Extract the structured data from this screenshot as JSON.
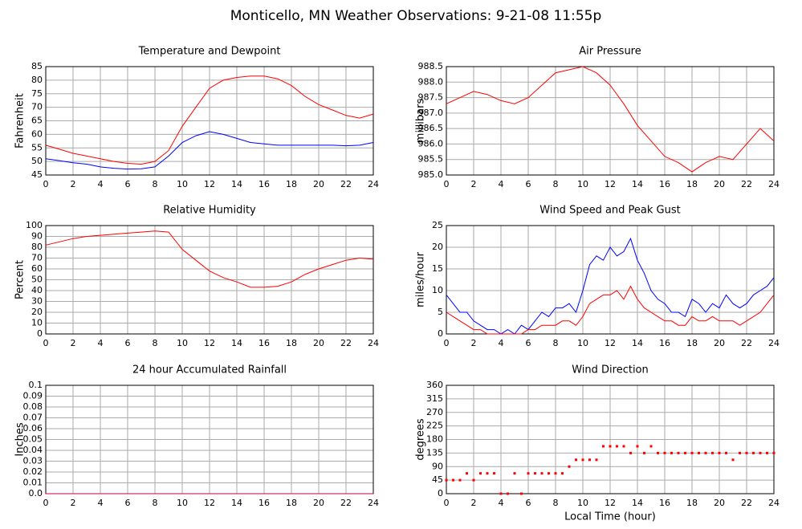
{
  "title": "Monticello, MN Weather Observations: 9-21-08 11:55p",
  "chart_data": [
    {
      "type": "line",
      "title": "Temperature and Dewpoint",
      "ylabel": "Fahrenheit",
      "grid": true,
      "x": [
        0,
        1,
        2,
        3,
        4,
        5,
        6,
        7,
        8,
        9,
        10,
        11,
        12,
        13,
        14,
        15,
        16,
        17,
        18,
        19,
        20,
        21,
        22,
        23,
        24
      ],
      "series": [
        {
          "color": "#ff0000",
          "values": [
            56,
            54.5,
            53,
            52,
            51,
            50,
            49.3,
            49,
            50,
            54,
            63,
            70,
            77,
            80,
            81,
            81.5,
            81.5,
            80.5,
            78,
            74,
            71,
            69,
            67,
            66,
            67.5
          ]
        },
        {
          "color": "#0000ff",
          "values": [
            51,
            50.3,
            49.5,
            49,
            48,
            47.5,
            47.2,
            47.3,
            48,
            52,
            57,
            59.5,
            61,
            60,
            58.5,
            57,
            56.5,
            56,
            56,
            56,
            56,
            56,
            55.8,
            56,
            57
          ]
        }
      ],
      "xlim": [
        0,
        24
      ],
      "xticks": [
        0,
        2,
        4,
        6,
        8,
        10,
        12,
        14,
        16,
        18,
        20,
        22,
        24
      ],
      "ylim": [
        45,
        85
      ],
      "yticks": [
        45,
        50,
        55,
        60,
        65,
        70,
        75,
        80,
        85
      ]
    },
    {
      "type": "line",
      "title": "Air Pressure",
      "ylabel": "millibars",
      "grid": true,
      "x": [
        0,
        1,
        2,
        3,
        4,
        5,
        6,
        7,
        8,
        9,
        10,
        11,
        12,
        13,
        14,
        15,
        16,
        17,
        18,
        19,
        20,
        21,
        22,
        23,
        24
      ],
      "series": [
        {
          "color": "#ff0000",
          "values": [
            987.3,
            987.5,
            987.7,
            987.6,
            987.4,
            987.3,
            987.5,
            987.9,
            988.3,
            988.4,
            988.5,
            988.3,
            987.9,
            987.3,
            986.6,
            986.1,
            985.6,
            985.4,
            985.1,
            985.4,
            985.6,
            985.5,
            986.0,
            986.5,
            986.1
          ]
        }
      ],
      "xlim": [
        0,
        24
      ],
      "xticks": [
        0,
        2,
        4,
        6,
        8,
        10,
        12,
        14,
        16,
        18,
        20,
        22,
        24
      ],
      "ylim": [
        985,
        988.5
      ],
      "yticks": [
        {
          "value": 985,
          "label": "985.0"
        },
        985.5,
        {
          "value": 986,
          "label": "986.0"
        },
        986.5,
        {
          "value": 987,
          "label": "987.0"
        },
        987.5,
        {
          "value": 988,
          "label": "988.0"
        },
        988.5
      ]
    },
    {
      "type": "line",
      "title": "Relative Humidity",
      "ylabel": "Percent",
      "grid": true,
      "x": [
        0,
        1,
        2,
        3,
        4,
        5,
        6,
        7,
        8,
        9,
        10,
        11,
        12,
        13,
        14,
        15,
        16,
        17,
        18,
        19,
        20,
        21,
        22,
        23,
        24
      ],
      "series": [
        {
          "color": "#ff0000",
          "values": [
            82,
            85,
            88,
            90,
            91,
            92,
            93,
            94,
            95,
            94,
            78,
            68,
            58,
            52,
            48,
            43,
            43,
            44,
            48,
            55,
            60,
            64,
            68,
            70,
            69
          ]
        }
      ],
      "xlim": [
        0,
        24
      ],
      "xticks": [
        0,
        2,
        4,
        6,
        8,
        10,
        12,
        14,
        16,
        18,
        20,
        22,
        24
      ],
      "ylim": [
        0,
        100
      ],
      "yticks": [
        0,
        10,
        20,
        30,
        40,
        50,
        60,
        70,
        80,
        90,
        100
      ]
    },
    {
      "type": "line",
      "title": "Wind Speed and Peak Gust",
      "ylabel": "miles/hour",
      "grid": true,
      "x": [
        0,
        0.5,
        1,
        1.5,
        2,
        2.5,
        3,
        3.5,
        4,
        4.5,
        5,
        5.5,
        6,
        6.5,
        7,
        7.5,
        8,
        8.5,
        9,
        9.5,
        10,
        10.5,
        11,
        11.5,
        12,
        12.5,
        13,
        13.5,
        14,
        14.5,
        15,
        15.5,
        16,
        16.5,
        17,
        17.5,
        18,
        18.5,
        19,
        19.5,
        20,
        20.5,
        21,
        21.5,
        22,
        22.5,
        23,
        23.5,
        24
      ],
      "series": [
        {
          "color": "#0000ff",
          "values": [
            9,
            7,
            5,
            5,
            3,
            2,
            1,
            1,
            0,
            1,
            0,
            2,
            1,
            3,
            5,
            4,
            6,
            6,
            7,
            5,
            10,
            16,
            18,
            17,
            20,
            18,
            19,
            22,
            17,
            14,
            10,
            8,
            7,
            5,
            5,
            4,
            8,
            7,
            5,
            7,
            6,
            9,
            7,
            6,
            7,
            9,
            10,
            11,
            13
          ]
        },
        {
          "color": "#ff0000",
          "values": [
            5,
            4,
            3,
            2,
            1,
            1,
            0,
            0,
            0,
            0,
            0,
            0,
            1,
            1,
            2,
            2,
            2,
            3,
            3,
            2,
            4,
            7,
            8,
            9,
            9,
            10,
            8,
            11,
            8,
            6,
            5,
            4,
            3,
            3,
            2,
            2,
            4,
            3,
            3,
            4,
            3,
            3,
            3,
            2,
            3,
            4,
            5,
            7,
            9
          ]
        }
      ],
      "xlim": [
        0,
        24
      ],
      "xticks": [
        0,
        2,
        4,
        6,
        8,
        10,
        12,
        14,
        16,
        18,
        20,
        22,
        24
      ],
      "ylim": [
        0,
        25
      ],
      "yticks": [
        0,
        5,
        10,
        15,
        20,
        25
      ]
    },
    {
      "type": "line",
      "title": "24 hour Accumulated Rainfall",
      "ylabel": "Inches",
      "grid": true,
      "x": [
        0,
        24
      ],
      "series": [
        {
          "color": "#cc0044",
          "values": [
            0,
            0
          ]
        }
      ],
      "xlim": [
        0,
        24
      ],
      "xticks": [
        0,
        2,
        4,
        6,
        8,
        10,
        12,
        14,
        16,
        18,
        20,
        22,
        24
      ],
      "ylim": [
        0,
        0.1
      ],
      "yticks": [
        {
          "value": 0,
          "label": "0.0"
        },
        0.01,
        0.02,
        0.03,
        0.04,
        0.05,
        0.06,
        0.07,
        0.08,
        0.09,
        0.1
      ]
    },
    {
      "type": "scatter",
      "title": "Wind Direction",
      "ylabel": "degrees",
      "xlabel": "Local Time (hour)",
      "grid": true,
      "x": [
        0,
        0.5,
        1,
        1.5,
        2,
        2.5,
        3,
        3.5,
        4,
        4.5,
        5,
        5.5,
        6,
        6.5,
        7,
        7.5,
        8,
        8.5,
        9,
        9.5,
        10,
        10.5,
        11,
        11.5,
        12,
        12.5,
        13,
        13.5,
        14,
        14.5,
        15,
        15.5,
        16,
        16.5,
        17,
        17.5,
        18,
        18.5,
        19,
        19.5,
        20,
        20.5,
        21,
        21.5,
        22,
        22.5,
        23,
        23.5,
        24
      ],
      "series": [
        {
          "color": "#ff0000",
          "values": [
            45,
            45,
            45,
            67.5,
            45,
            67.5,
            67.5,
            67.5,
            0,
            0,
            67.5,
            0,
            67.5,
            67.5,
            67.5,
            67.5,
            67.5,
            67.5,
            90,
            112.5,
            112.5,
            112.5,
            112.5,
            157.5,
            157.5,
            157.5,
            157.5,
            135,
            157.5,
            135,
            157.5,
            135,
            135,
            135,
            135,
            135,
            135,
            135,
            135,
            135,
            135,
            135,
            112.5,
            135,
            135,
            135,
            135,
            135,
            135
          ]
        }
      ],
      "xlim": [
        0,
        24
      ],
      "xticks": [
        0,
        2,
        4,
        6,
        8,
        10,
        12,
        14,
        16,
        18,
        20,
        22,
        24
      ],
      "ylim": [
        0,
        360
      ],
      "yticks": [
        0,
        45,
        90,
        135,
        180,
        225,
        270,
        315,
        360
      ]
    }
  ]
}
